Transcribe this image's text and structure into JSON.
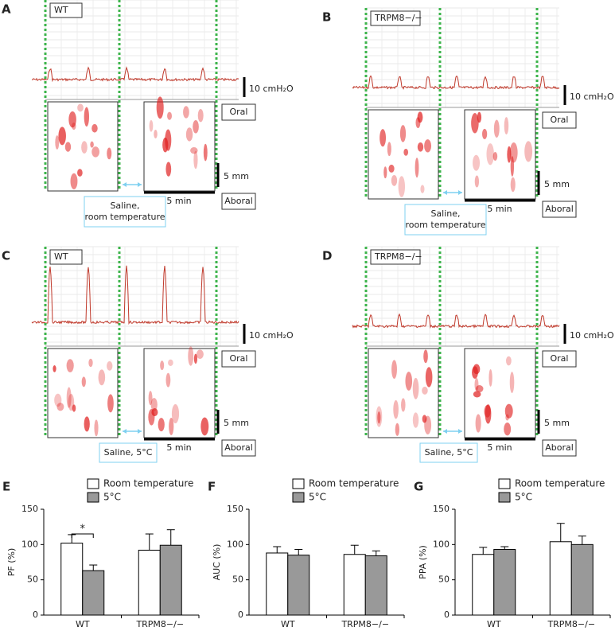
{
  "panels": [
    {
      "label": "A",
      "genotype": "WT",
      "pressure_scale": "10 cmH₂O",
      "oral": "Oral",
      "length_scale": "5 mm",
      "time_scale": "5 min",
      "aboral": "Aboral",
      "condition": [
        "Saline,",
        "room temperature"
      ]
    },
    {
      "label": "B",
      "genotype": "TRPM8−/−",
      "pressure_scale": "10 cmH₂O",
      "oral": "Oral",
      "length_scale": "5 mm",
      "time_scale": "5 min",
      "aboral": "Aboral",
      "condition": [
        "Saline,",
        "room temperature"
      ]
    },
    {
      "label": "C",
      "genotype": "WT",
      "pressure_scale": "10 cmH₂O",
      "oral": "Oral",
      "length_scale": "5 mm",
      "time_scale": "5 min",
      "aboral": "Aboral",
      "condition": [
        "Saline, 5°C"
      ]
    },
    {
      "label": "D",
      "genotype": "TRPM8−/−",
      "pressure_scale": "10 cmH₂O",
      "oral": "Oral",
      "length_scale": "5 mm",
      "time_scale": "5 min",
      "aboral": "Aboral",
      "condition": [
        "Saline, 5°C"
      ]
    }
  ],
  "chart_data": [
    {
      "type": "bar",
      "panel_label": "E",
      "ylabel": "PF (%)",
      "categories": [
        "WT",
        "TRPM8−/−"
      ],
      "series": [
        {
          "name": "Room temperature",
          "color": "#ffffff",
          "values": [
            102,
            92
          ],
          "errors": [
            12,
            23
          ]
        },
        {
          "name": "5°C",
          "color": "#999999",
          "values": [
            63,
            99
          ],
          "errors": [
            8,
            22
          ]
        }
      ],
      "ylim": [
        0,
        150
      ],
      "yticks": [
        0,
        50,
        100,
        150
      ],
      "significance": "*"
    },
    {
      "type": "bar",
      "panel_label": "F",
      "ylabel": "AUC (%)",
      "categories": [
        "WT",
        "TRPM8−/−"
      ],
      "series": [
        {
          "name": "Room temperature",
          "color": "#ffffff",
          "values": [
            88,
            86
          ],
          "errors": [
            9,
            13
          ]
        },
        {
          "name": "5°C",
          "color": "#999999",
          "values": [
            85,
            84
          ],
          "errors": [
            8,
            7
          ]
        }
      ],
      "ylim": [
        0,
        150
      ],
      "yticks": [
        0,
        50,
        100,
        150
      ]
    },
    {
      "type": "bar",
      "panel_label": "G",
      "ylabel": "PPA (%)",
      "categories": [
        "WT",
        "TRPM8−/−"
      ],
      "series": [
        {
          "name": "Room temperature",
          "color": "#ffffff",
          "values": [
            86,
            104
          ],
          "errors": [
            10,
            26
          ]
        },
        {
          "name": "5°C",
          "color": "#999999",
          "values": [
            93,
            100
          ],
          "errors": [
            4,
            12
          ]
        }
      ],
      "ylim": [
        0,
        150
      ],
      "yticks": [
        0,
        50,
        100,
        150
      ]
    }
  ]
}
